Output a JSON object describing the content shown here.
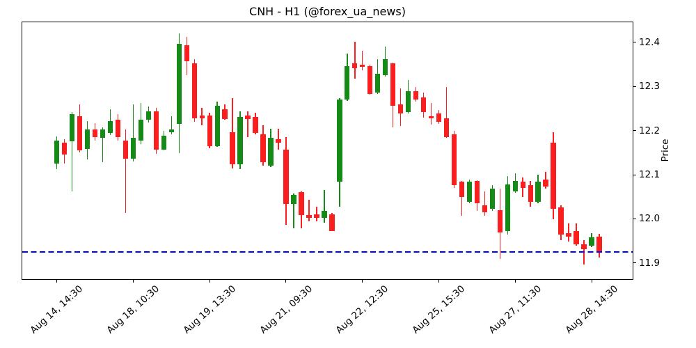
{
  "figure": {
    "background": "#ffffff"
  },
  "chart_data": {
    "type": "candlestick",
    "title": "CNH - H1 (@forex_ua_news)",
    "ylabel": "Price",
    "grid": false,
    "legend": null,
    "up_color": "#168a16",
    "down_color": "#fa1e1e",
    "ylim": [
      11.862,
      12.447
    ],
    "y_ticks": [
      11.9,
      12.0,
      12.1,
      12.2,
      12.3,
      12.4
    ],
    "y_tick_labels": [
      "11.9",
      "12.0",
      "12.1",
      "12.2",
      "12.3",
      "12.4"
    ],
    "x_tick_indices": [
      0,
      10,
      20,
      30,
      40,
      50,
      60,
      70
    ],
    "x_tick_labels": [
      "Aug 14, 14:30",
      "Aug 18, 10:30",
      "Aug 19, 13:30",
      "Aug 21, 09:30",
      "Aug 22, 12:30",
      "Aug 25, 15:30",
      "Aug 27, 11:30",
      "Aug 28, 14:30"
    ],
    "hline": {
      "price": 11.925,
      "color": "#0000ff",
      "style": "dashed"
    },
    "candles_ohlc_format": [
      "open",
      "high",
      "low",
      "close"
    ],
    "candles_ohlc": [
      [
        12.126,
        12.187,
        12.113,
        12.178
      ],
      [
        12.172,
        12.18,
        12.126,
        12.146
      ],
      [
        12.175,
        12.242,
        12.063,
        12.238
      ],
      [
        12.233,
        12.26,
        12.15,
        12.156
      ],
      [
        12.158,
        12.222,
        12.134,
        12.203
      ],
      [
        12.202,
        12.217,
        12.178,
        12.185
      ],
      [
        12.184,
        12.207,
        12.129,
        12.203
      ],
      [
        12.195,
        12.248,
        12.19,
        12.222
      ],
      [
        12.225,
        12.238,
        12.178,
        12.186
      ],
      [
        12.178,
        12.202,
        12.013,
        12.137
      ],
      [
        12.136,
        12.259,
        12.13,
        12.183
      ],
      [
        12.178,
        12.262,
        12.17,
        12.225
      ],
      [
        12.225,
        12.254,
        12.219,
        12.244
      ],
      [
        12.243,
        12.251,
        12.148,
        12.157
      ],
      [
        12.157,
        12.2,
        12.155,
        12.189
      ],
      [
        12.196,
        12.233,
        12.192,
        12.203
      ],
      [
        12.215,
        12.42,
        12.149,
        12.397
      ],
      [
        12.394,
        12.412,
        12.325,
        12.357
      ],
      [
        12.352,
        12.362,
        12.22,
        12.228
      ],
      [
        12.234,
        12.252,
        12.212,
        12.228
      ],
      [
        12.234,
        12.24,
        12.16,
        12.165
      ],
      [
        12.165,
        12.265,
        12.163,
        12.257
      ],
      [
        12.249,
        12.259,
        12.224,
        12.226
      ],
      [
        12.197,
        12.273,
        12.115,
        12.123
      ],
      [
        12.123,
        12.244,
        12.112,
        12.231
      ],
      [
        12.234,
        12.244,
        12.186,
        12.226
      ],
      [
        12.231,
        12.241,
        12.191,
        12.194
      ],
      [
        12.191,
        12.212,
        12.12,
        12.128
      ],
      [
        12.12,
        12.204,
        12.118,
        12.183
      ],
      [
        12.181,
        12.204,
        12.157,
        12.173
      ],
      [
        12.157,
        12.186,
        11.986,
        12.034
      ],
      [
        12.034,
        12.057,
        11.978,
        12.055
      ],
      [
        12.06,
        12.062,
        11.978,
        12.008
      ],
      [
        12.008,
        12.044,
        11.994,
        12.002
      ],
      [
        12.01,
        12.028,
        11.994,
        12.002
      ],
      [
        12.002,
        12.065,
        11.991,
        12.018
      ],
      [
        12.01,
        12.014,
        11.973,
        11.973
      ],
      [
        12.084,
        12.273,
        12.028,
        12.27
      ],
      [
        12.27,
        12.375,
        12.268,
        12.346
      ],
      [
        12.352,
        12.401,
        12.318,
        12.341
      ],
      [
        12.349,
        12.381,
        12.336,
        12.344
      ],
      [
        12.346,
        12.35,
        12.281,
        12.283
      ],
      [
        12.286,
        12.362,
        12.283,
        12.328
      ],
      [
        12.325,
        12.391,
        12.323,
        12.362
      ],
      [
        12.352,
        12.354,
        12.207,
        12.257
      ],
      [
        12.26,
        12.296,
        12.21,
        12.239
      ],
      [
        12.242,
        12.315,
        12.239,
        12.289
      ],
      [
        12.289,
        12.299,
        12.265,
        12.27
      ],
      [
        12.275,
        12.286,
        12.23,
        12.242
      ],
      [
        12.232,
        12.262,
        12.213,
        12.228
      ],
      [
        12.239,
        12.246,
        12.215,
        12.22
      ],
      [
        12.228,
        12.299,
        12.183,
        12.186
      ],
      [
        12.191,
        12.199,
        12.07,
        12.076
      ],
      [
        12.084,
        12.086,
        12.007,
        12.049
      ],
      [
        12.039,
        12.089,
        12.035,
        12.084
      ],
      [
        12.086,
        12.088,
        12.018,
        12.036
      ],
      [
        12.031,
        12.062,
        12.007,
        12.015
      ],
      [
        12.023,
        12.076,
        12.018,
        12.068
      ],
      [
        12.02,
        12.068,
        11.91,
        11.97
      ],
      [
        11.973,
        12.097,
        11.965,
        12.078
      ],
      [
        12.062,
        12.104,
        12.059,
        12.086
      ],
      [
        12.084,
        12.094,
        12.049,
        12.07
      ],
      [
        12.076,
        12.086,
        12.028,
        12.039
      ],
      [
        12.039,
        12.1,
        12.035,
        12.084
      ],
      [
        12.089,
        12.107,
        12.068,
        12.073
      ],
      [
        12.173,
        12.197,
        11.999,
        12.023
      ],
      [
        12.026,
        12.031,
        11.952,
        11.965
      ],
      [
        11.968,
        11.989,
        11.949,
        11.96
      ],
      [
        11.973,
        11.989,
        11.939,
        11.942
      ],
      [
        11.942,
        11.952,
        11.897,
        11.931
      ],
      [
        11.939,
        11.968,
        11.936,
        11.958
      ],
      [
        11.96,
        11.966,
        11.913,
        11.923
      ]
    ]
  }
}
